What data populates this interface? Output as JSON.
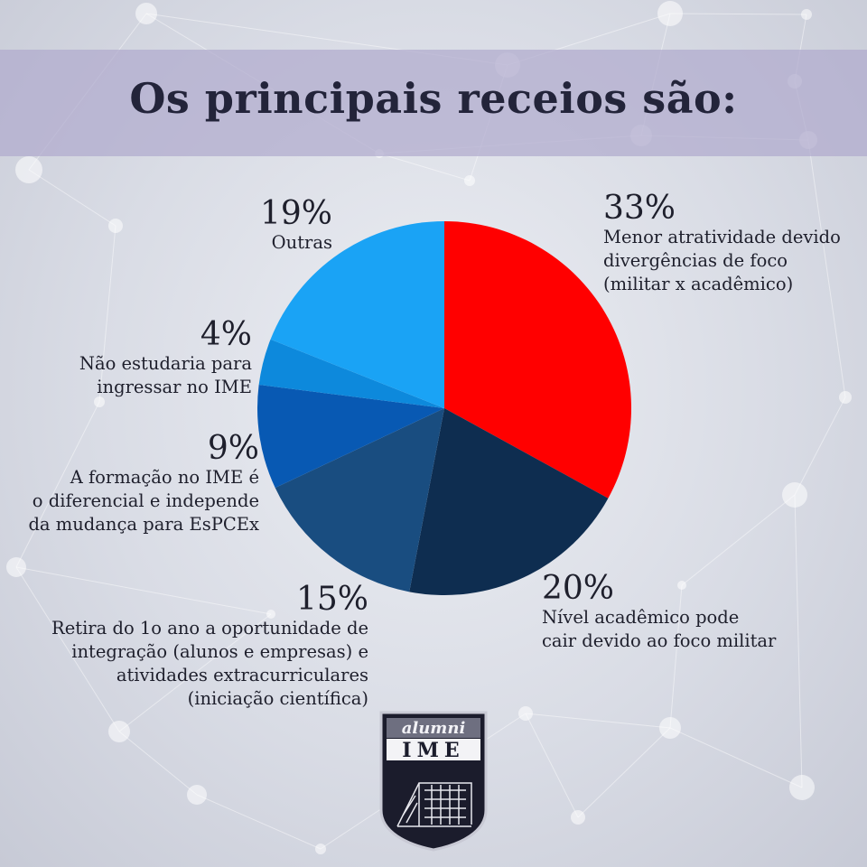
{
  "title": "Os principais receios são:",
  "chart_data": {
    "type": "pie",
    "title": "Os principais receios são:",
    "slices": [
      {
        "percent": 33,
        "value_label": "33%",
        "label_lines": [
          "Menor atratividade devido",
          "divergências de foco",
          "(militar x acadêmico)"
        ],
        "color": "#ff0000"
      },
      {
        "percent": 20,
        "value_label": "20%",
        "label_lines": [
          "Nível acadêmico pode",
          "cair devido ao foco militar"
        ],
        "color": "#0e2d50"
      },
      {
        "percent": 15,
        "value_label": "15%",
        "label_lines": [
          "Retira do 1o ano a oportunidade de",
          "integração (alunos e empresas) e",
          "atividades extracurriculares",
          "(iniciação científica)"
        ],
        "color": "#194d80"
      },
      {
        "percent": 9,
        "value_label": "9%",
        "label_lines": [
          "A formação no IME é",
          "o diferencial e independe",
          "da mudança para EsPCEx"
        ],
        "color": "#0859b3"
      },
      {
        "percent": 4,
        "value_label": "4%",
        "label_lines": [
          "Não estudaria para",
          "ingressar no IME"
        ],
        "color": "#0d89dc"
      },
      {
        "percent": 19,
        "value_label": "19%",
        "label_lines": [
          "Outras"
        ],
        "color": "#1aa3f5"
      }
    ]
  },
  "logo": {
    "line1": "alumni",
    "line2": "IME"
  }
}
